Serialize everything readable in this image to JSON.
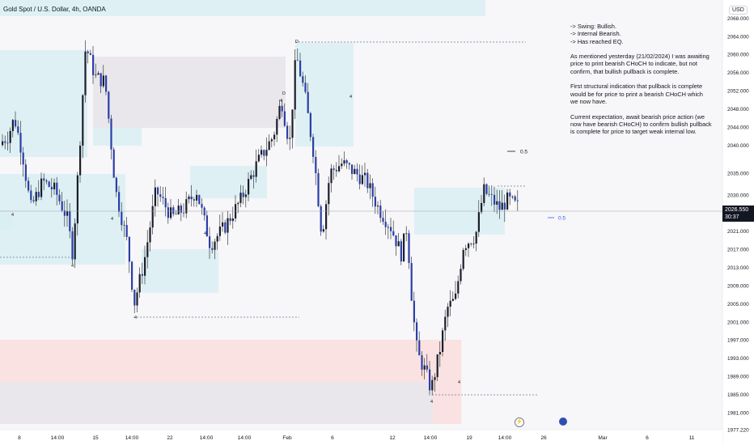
{
  "header": {
    "title": "Gold Spot / U.S. Dollar, 4h, OANDA",
    "currency": "USD"
  },
  "notes": {
    "text": "-> Swing: Bullish.\n-> Internal Bearish.\n-> Has reached EQ.\n\nAs mentioned yesterday (21/02/2024) I was awaiting price to print bearish CHoCH to indicate, but not confirm, that bullish pullback is complete.\n\nFirst structural indication that pullback is complete would be for price to print a bearish CHoCH which we now have.\n\nCurrent expectation, await bearish price action (we now have bearish CHoCH) to confirm bullish pullback is complete for price to target weak internal low."
  },
  "price_tag": {
    "price": "2026.550",
    "countdown": "30:37"
  },
  "colors": {
    "up": "#1b1f2a",
    "down": "#2a3fa8",
    "zone_blue": "#d9eef2",
    "zone_red": "#fadede",
    "zone_gray": "#e6e4ea",
    "line": "#6c7a96"
  },
  "chart_data": {
    "type": "candlestick",
    "ylim": [
      1977.22,
      2072
    ],
    "y_ticks": [
      "2068.000",
      "2064.000",
      "2060.000",
      "2056.000",
      "2052.000",
      "2048.000",
      "2044.000",
      "2040.000",
      "2035.000",
      "2030.000",
      "2021.000",
      "2017.000",
      "2013.000",
      "2009.000",
      "2005.000",
      "2001.000",
      "1997.000",
      "1993.000",
      "1989.000",
      "1985.000",
      "1981.000",
      "1977.220"
    ],
    "x_ticks": [
      "8",
      "14:00",
      "15",
      "14:00",
      "22",
      "14:00",
      "Feb",
      "6",
      "14:00",
      "12",
      "14:00",
      "19",
      "14:00",
      "26",
      "Mar",
      "6",
      "11"
    ],
    "annotations": {
      "eq_upper": "0.5",
      "eq_lower": "0.5",
      "markers": [
        "4",
        "4",
        "4",
        "4",
        "D",
        "4",
        "4",
        "4",
        "4",
        "D",
        "4"
      ]
    }
  }
}
